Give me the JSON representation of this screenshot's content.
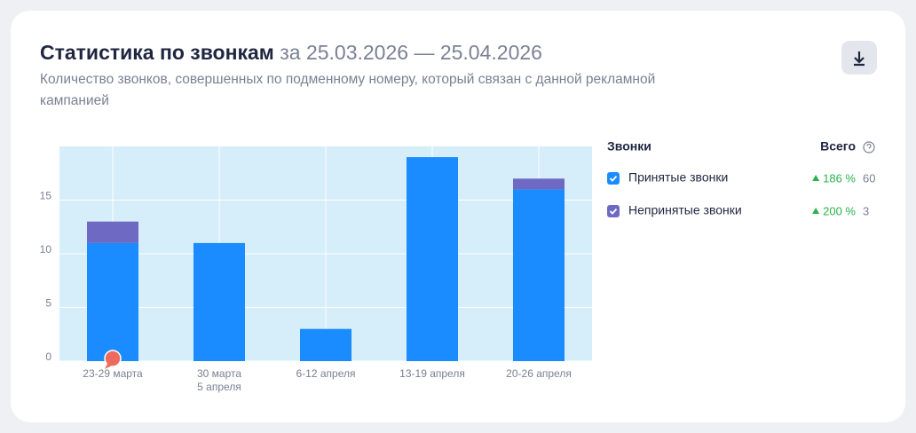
{
  "header": {
    "title": "Статистика по звонкам",
    "period": "за 25.03.2026 — 25.04.2026",
    "subtitle": "Количество звонков, совершенных по подменному номеру, который связан с данной рекламной кампанией"
  },
  "chart_data": {
    "type": "stacked_bar",
    "categories": [
      [
        "23-29 марта"
      ],
      [
        "30 марта",
        "5 апреля"
      ],
      [
        "6-12 апреля"
      ],
      [
        "13-19 апреля"
      ],
      [
        "20-26 апреля"
      ]
    ],
    "series": [
      {
        "name": "Принятые звонки",
        "color": "#1a8cff",
        "values": [
          11,
          11,
          3,
          19,
          16
        ],
        "total": 60,
        "change": {
          "value": 186,
          "label": "186 %"
        }
      },
      {
        "name": "Непринятые звонки",
        "color": "#6e6ac4",
        "values": [
          2,
          0,
          0,
          0,
          1
        ],
        "total": 3,
        "change": {
          "value": 200,
          "label": "200 %"
        }
      }
    ],
    "ylim": [
      0,
      20
    ],
    "yticks": [
      0,
      5,
      10,
      15
    ],
    "grid": true,
    "legend": {
      "header": "Звонки",
      "total_header": "Всего"
    }
  }
}
